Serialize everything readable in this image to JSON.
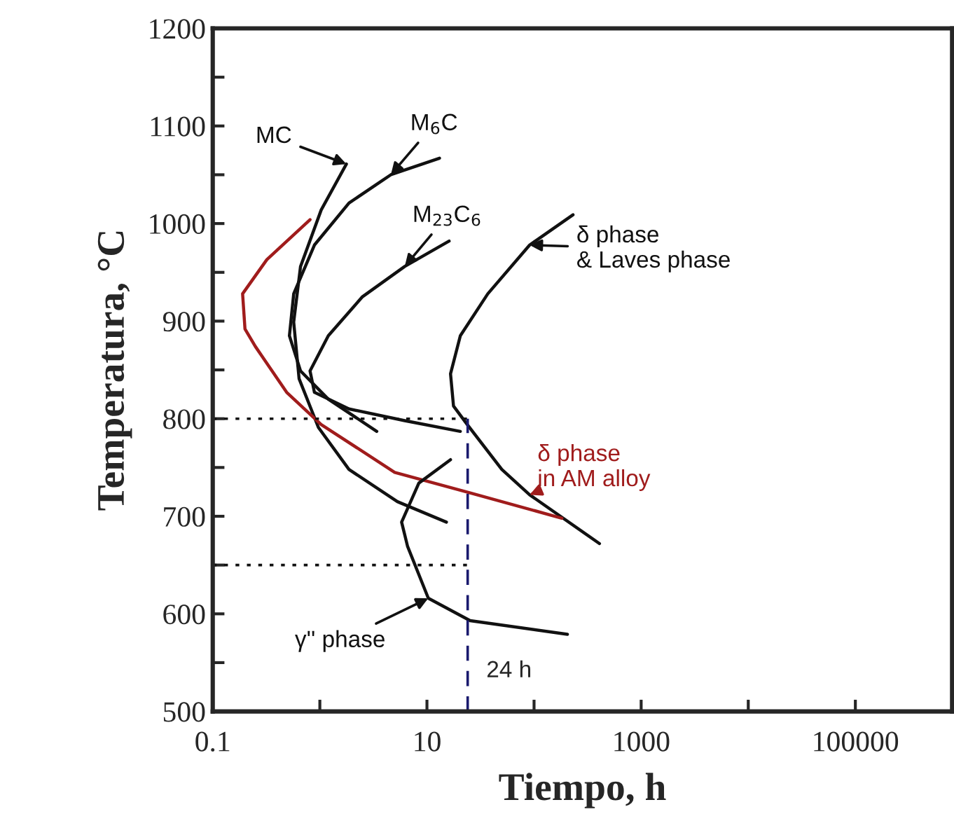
{
  "chart_data": {
    "type": "line",
    "xlabel": "Tiempo, h",
    "ylabel": "Temperatura, °C",
    "log": "x",
    "xlim": [
      0.1,
      800000
    ],
    "ylim": [
      500,
      1200
    ],
    "xticks": [
      0.1,
      {
        "value": 1,
        "label": null
      },
      10,
      {
        "value": 100,
        "label": null
      },
      1000,
      {
        "value": 10000,
        "label": null
      },
      100000
    ],
    "yticks": [
      500,
      {
        "value": 550,
        "label": null
      },
      600,
      {
        "value": 650,
        "label": null
      },
      700,
      {
        "value": 750,
        "label": null
      },
      800,
      {
        "value": 850,
        "label": null
      },
      900,
      {
        "value": 950,
        "label": null
      },
      1000,
      {
        "value": 1050,
        "label": null
      },
      1100,
      {
        "value": 1150,
        "label": null
      },
      1200
    ],
    "grid": false,
    "legend": false,
    "marker": "none",
    "line_style": "solid",
    "series": [
      {
        "color": "#111111",
        "x": [
          1.77,
          1.03,
          0.66,
          0.57,
          0.64,
          0.97,
          1.87,
          5.3,
          15.2
        ],
        "values": [
          1061,
          1014,
          956,
          899,
          841,
          791,
          748,
          715,
          694
        ]
      },
      {
        "color": "#111111",
        "x": [
          13.1,
          4.6,
          1.87,
          0.89,
          0.57,
          0.52,
          0.66,
          1.2,
          3.4
        ],
        "values": [
          1067,
          1050,
          1021,
          978,
          928,
          885,
          849,
          820,
          787
        ]
      },
      {
        "color": "#111111",
        "x": [
          16.1,
          6.2,
          2.5,
          1.2,
          0.81,
          0.89,
          1.87,
          6.2,
          20.5
        ],
        "values": [
          982,
          956,
          925,
          885,
          849,
          827,
          810,
          798,
          787
        ]
      },
      {
        "color": "#111111",
        "x": [
          231,
          91,
          37,
          20.5,
          16.6,
          17.7,
          23.8,
          50,
          91,
          408
        ],
        "values": [
          1009,
          978,
          928,
          885,
          846,
          813,
          794,
          748,
          722,
          672
        ]
      },
      {
        "color": "#a01c1c",
        "x": [
          0.81,
          0.32,
          0.19,
          0.2,
          0.25,
          0.49,
          1.03,
          5.0,
          25.3,
          182
        ],
        "values": [
          1004,
          963,
          928,
          892,
          874,
          827,
          794,
          745,
          724,
          698
        ]
      },
      {
        "color": "#111111",
        "x": [
          16.6,
          8.4,
          5.8,
          6.6,
          10.3,
          25.3,
          205
        ],
        "values": [
          758,
          734,
          694,
          669,
          616,
          593,
          579
        ]
      },
      {
        "color": "#111111",
        "line_style": "dotted",
        "x": [
          0.1,
          24
        ],
        "values": [
          800,
          800
        ]
      },
      {
        "color": "#111111",
        "line_style": "dotted",
        "x": [
          0.1,
          24
        ],
        "values": [
          650,
          650
        ]
      },
      {
        "color": "#1a1a6e",
        "line_style": "dashed",
        "x": [
          24,
          24
        ],
        "values": [
          500,
          800
        ]
      }
    ],
    "annotations": [
      {
        "text": "MC",
        "x": 1.77,
        "y": 1061
      },
      {
        "text": "M$_{6}$C",
        "x": 4.6,
        "y": 1050
      },
      {
        "text": "M$_{23}$C$_{6}$",
        "x": 6.2,
        "y": 956
      },
      {
        "text": "δ phase\n& Laves phase",
        "x": 91,
        "y": 978
      },
      {
        "text": "δ phase\nin AM alloy",
        "x": 91,
        "y": 722
      },
      {
        "text": "γ'' phase",
        "x": 10.3,
        "y": 616
      },
      "24 h"
    ]
  }
}
